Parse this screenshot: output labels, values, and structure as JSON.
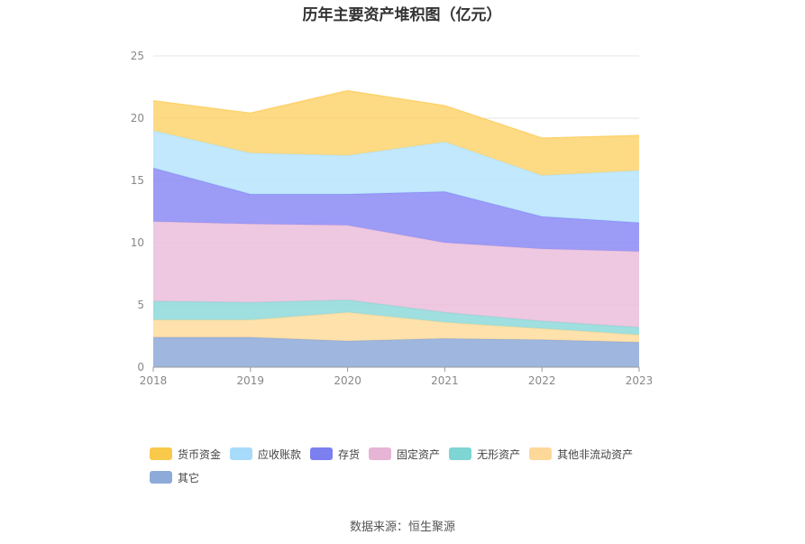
{
  "chart_data": {
    "type": "area",
    "stacked": true,
    "title": "历年主要资产堆积图（亿元）",
    "x": [
      "2018",
      "2019",
      "2020",
      "2021",
      "2022",
      "2023"
    ],
    "ylim": [
      0,
      25
    ],
    "yticks": [
      "0",
      "5",
      "10",
      "15",
      "20",
      "25"
    ],
    "grid": true,
    "legend_position": "bottom",
    "series": [
      {
        "name": "其它",
        "color": "#8eaad9",
        "values": [
          2.4,
          2.4,
          2.1,
          2.3,
          2.2,
          2.0
        ]
      },
      {
        "name": "其他非流动资产",
        "color": "#fedc9c",
        "values": [
          1.4,
          1.4,
          2.3,
          1.3,
          0.9,
          0.6
        ]
      },
      {
        "name": "无形资产",
        "color": "#8ed9d9",
        "values": [
          1.5,
          1.4,
          1.0,
          0.8,
          0.6,
          0.6
        ]
      },
      {
        "name": "固定资产",
        "color": "#eabedb",
        "values": [
          6.4,
          6.3,
          6.0,
          5.6,
          5.8,
          6.1
        ]
      },
      {
        "name": "存货",
        "color": "#8b8bf5",
        "values": [
          4.3,
          2.4,
          2.5,
          4.1,
          2.6,
          2.3
        ]
      },
      {
        "name": "应收账款",
        "color": "#b6e4fb",
        "values": [
          3.0,
          3.3,
          3.1,
          4.0,
          3.3,
          4.2
        ]
      },
      {
        "name": "货币资金",
        "color": "#fdd36e",
        "values": [
          2.4,
          3.2,
          5.2,
          2.9,
          3.0,
          2.8
        ]
      }
    ],
    "legend_order": [
      "货币资金",
      "应收账款",
      "存货",
      "固定资产",
      "无形资产",
      "其他非流动资产",
      "其它"
    ],
    "legend_colors": {
      "货币资金": "#f9c94b",
      "应收账款": "#a6dcfa",
      "存货": "#7b7ff0",
      "固定资产": "#e6b4d4",
      "无形资产": "#7fd4d4",
      "其他非流动资产": "#fed898",
      "其它": "#8eaad9"
    }
  },
  "footer": {
    "source": "数据来源：恒生聚源"
  }
}
